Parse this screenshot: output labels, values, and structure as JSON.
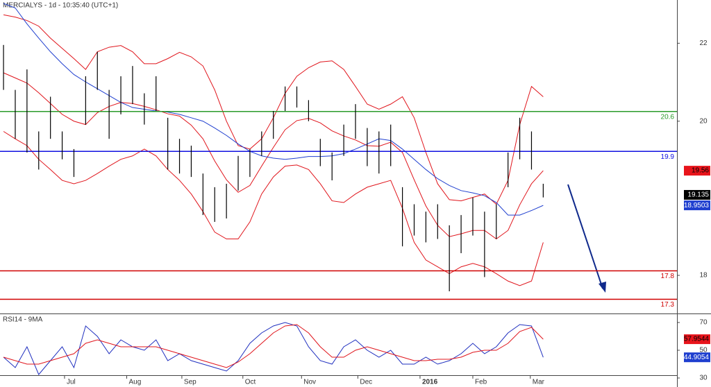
{
  "chart_data": [
    {
      "type": "ohlc",
      "title": "MERCIALYS - 1d - 10:35:40 (UTC+1)",
      "xlim": [
        -0.3,
        57.4
      ],
      "ylim": [
        17.05,
        22.56
      ],
      "yticks": [
        {
          "value": 21.8,
          "label": "22"
        },
        {
          "value": 20.43,
          "label": "20"
        },
        {
          "value": 17.72,
          "label": "18"
        }
      ],
      "bar_color": "#000000",
      "high": [
        21.77,
        20.98,
        21.34,
        20.25,
        20.86,
        20.25,
        19.94,
        21.22,
        21.65,
        20.98,
        21.22,
        21.4,
        20.92,
        21.22,
        20.49,
        20.12,
        20.0,
        19.51,
        19.27,
        19.33,
        19.82,
        19.94,
        20.25,
        20.61,
        21.04,
        21.04,
        20.8,
        20.12,
        19.88,
        20.37,
        20.73,
        20.31,
        20.25,
        20.37,
        19.27,
        18.97,
        18.84,
        18.97,
        18.6,
        18.78,
        19.09,
        18.84,
        18.97,
        19.88,
        20.49,
        20.25,
        19.33
      ],
      "low": [
        20.98,
        20.12,
        19.88,
        19.58,
        20.12,
        19.76,
        19.45,
        20.37,
        20.98,
        20.12,
        20.55,
        20.73,
        20.37,
        20.61,
        19.58,
        19.51,
        19.45,
        18.78,
        18.66,
        18.72,
        19.21,
        19.45,
        19.82,
        20.12,
        20.61,
        20.67,
        20.43,
        19.64,
        19.39,
        19.82,
        20.12,
        19.64,
        19.51,
        19.64,
        18.23,
        18.42,
        18.3,
        18.36,
        17.44,
        18.11,
        18.42,
        17.69,
        18.36,
        19.27,
        19.76,
        19.58,
        19.09
      ],
      "lines": [
        {
          "color": "#e0141b",
          "values": [
            22.3,
            22.26,
            22.2,
            22.1,
            21.89,
            21.71,
            21.53,
            21.34,
            21.65,
            21.73,
            21.76,
            21.65,
            21.44,
            21.44,
            21.53,
            21.64,
            21.56,
            21.4,
            20.98,
            20.43,
            20.0,
            19.94,
            20.12,
            20.49,
            20.92,
            21.22,
            21.37,
            21.47,
            21.49,
            21.34,
            21.04,
            20.73,
            20.64,
            20.73,
            20.86,
            20.49,
            19.88,
            19.33,
            19.05,
            19.03,
            19.09,
            19.15,
            18.97,
            19.39,
            20.37,
            21.04,
            20.86
          ]
        },
        {
          "color": "#e0141b",
          "values": [
            21.28,
            21.19,
            21.1,
            20.93,
            20.74,
            20.55,
            20.43,
            20.37,
            20.58,
            20.69,
            20.76,
            20.74,
            20.69,
            20.63,
            20.56,
            20.52,
            20.36,
            20.12,
            19.73,
            19.4,
            19.18,
            19.3,
            19.64,
            19.97,
            20.28,
            20.44,
            20.48,
            20.4,
            20.26,
            20.17,
            20.1,
            20.0,
            19.99,
            20.06,
            19.88,
            19.4,
            18.94,
            18.6,
            18.4,
            18.45,
            18.51,
            18.51,
            18.36,
            18.51,
            18.96,
            19.33,
            19.56
          ]
        },
        {
          "color": "#e0141b",
          "values": [
            20.25,
            20.12,
            20.0,
            19.76,
            19.58,
            19.39,
            19.33,
            19.39,
            19.51,
            19.64,
            19.76,
            19.82,
            19.94,
            19.82,
            19.58,
            19.39,
            19.15,
            18.84,
            18.48,
            18.36,
            18.36,
            18.66,
            19.15,
            19.45,
            19.64,
            19.66,
            19.58,
            19.33,
            19.03,
            19.0,
            19.15,
            19.27,
            19.33,
            19.39,
            18.9,
            18.3,
            17.99,
            17.87,
            17.75,
            17.87,
            17.93,
            17.87,
            17.75,
            17.62,
            17.54,
            17.62,
            18.3
          ]
        },
        {
          "color": "#1f3fcf",
          "values": [
            22.5,
            22.42,
            22.14,
            21.89,
            21.65,
            21.44,
            21.25,
            21.12,
            21.0,
            20.88,
            20.76,
            20.67,
            20.64,
            20.61,
            20.59,
            20.55,
            20.49,
            20.43,
            20.31,
            20.18,
            20.03,
            19.9,
            19.82,
            19.78,
            19.76,
            19.78,
            19.81,
            19.81,
            19.82,
            19.86,
            19.94,
            20.03,
            20.12,
            20.09,
            19.94,
            19.76,
            19.58,
            19.42,
            19.3,
            19.21,
            19.17,
            19.12,
            19.0,
            18.78,
            18.78,
            18.86,
            18.95
          ]
        }
      ],
      "levels": [
        {
          "value": 20.6,
          "color": "#2a9a2a"
        },
        {
          "value": 19.9,
          "color": "#1010e0"
        },
        {
          "value": 17.8,
          "color": "#d00000"
        },
        {
          "value": 17.3,
          "color": "#d00000"
        }
      ],
      "badges": [
        {
          "value": 19.56,
          "color": "#e8141b",
          "text_color": "#000000"
        },
        {
          "value": 19.135,
          "color": "#000000",
          "text_color": "#ffffff"
        },
        {
          "value": 18.9503,
          "color": "#1f3fcf",
          "text_color": "#ffffff"
        }
      ]
    },
    {
      "type": "rsi",
      "title": "RSI14 - 9MA",
      "xlim": [
        -0.3,
        57.4
      ],
      "ylim": [
        32.5,
        75
      ],
      "yticks": [
        70,
        50,
        30
      ],
      "xticks": [
        {
          "value": 5.2,
          "label": "Jul"
        },
        {
          "value": 10.5,
          "label": "Aug"
        },
        {
          "value": 15.2,
          "label": "Sep"
        },
        {
          "value": 20.4,
          "label": "Oct"
        },
        {
          "value": 25.4,
          "label": "Nov"
        },
        {
          "value": 30.2,
          "label": "Dec"
        },
        {
          "value": 35.5,
          "label": "2016"
        },
        {
          "value": 40,
          "label": "Feb"
        },
        {
          "value": 44.9,
          "label": "Mar"
        }
      ],
      "lines": [
        {
          "color": "#1f2fbf",
          "values": [
            45,
            37.5,
            52.5,
            32.5,
            42.5,
            52.5,
            37.5,
            67.5,
            60,
            47.5,
            57.5,
            52.5,
            50,
            57.5,
            42.5,
            47.5,
            42.5,
            40,
            37.5,
            35,
            42.5,
            55,
            62.5,
            67.5,
            70,
            67.5,
            52.5,
            42.5,
            40,
            52.5,
            57.5,
            50,
            45,
            50,
            40,
            40,
            45,
            40,
            42.5,
            47.5,
            55,
            47.5,
            52.5,
            62.5,
            68.5,
            67.5,
            44.91
          ]
        },
        {
          "color": "#e0141b",
          "values": [
            45,
            42.5,
            40,
            40,
            42.5,
            45,
            47.5,
            55,
            57.5,
            55,
            52.5,
            52.5,
            52.5,
            52.5,
            50,
            47.5,
            45,
            42.5,
            40,
            37.5,
            41.5,
            47.5,
            55,
            62.5,
            67.5,
            68.5,
            62.5,
            52.5,
            45,
            45,
            50,
            52.5,
            50,
            47.5,
            45,
            42.5,
            42.5,
            43.5,
            43.5,
            45,
            48.5,
            50,
            50,
            55,
            63.5,
            66.5,
            57.95
          ]
        }
      ],
      "badges": [
        {
          "value": 57.9544,
          "color": "#e8141b",
          "text_color": "#000000"
        },
        {
          "value": 44.9054,
          "color": "#1f3fcf",
          "text_color": "#ffffff"
        }
      ]
    }
  ]
}
